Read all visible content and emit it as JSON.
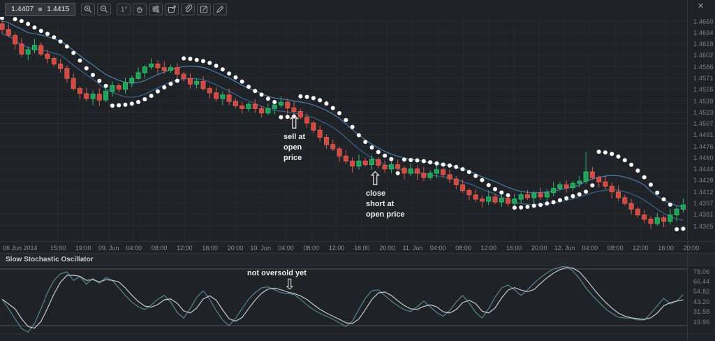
{
  "toolbar": {
    "bid": "1.4407",
    "ask": "1.4415",
    "buttons": [
      {
        "name": "zoom-in-button",
        "icon": "magnifier-plus-icon"
      },
      {
        "name": "zoom-out-button",
        "icon": "magnifier-minus-icon"
      },
      {
        "name": "reset-scale-button",
        "icon": "one-x-icon",
        "label": "1x"
      },
      {
        "name": "pan-button",
        "icon": "hand-icon"
      },
      {
        "name": "settings-button",
        "icon": "sliders-icon"
      },
      {
        "name": "export-button",
        "icon": "export-box-icon"
      },
      {
        "name": "attach-button",
        "icon": "paperclip-icon"
      },
      {
        "name": "notes-button",
        "icon": "edit-square-icon"
      },
      {
        "name": "draw-button",
        "icon": "pencil-icon"
      }
    ]
  },
  "annotations": {
    "sell": "sell at open price",
    "close_short": "close short at open price",
    "stoch": "not oversold yet"
  },
  "indicator_panel": {
    "title": "Slow Stochastic Oscillator",
    "close_label": "✕"
  },
  "axes": {
    "time_start_label": "06 Jun 2014",
    "time_labels": [
      "15:00",
      "19:00",
      "09. Jun",
      "04:00",
      "08:00",
      "12:00",
      "16:00",
      "20:00",
      "10. Jun",
      "04:00",
      "08:00",
      "12:00",
      "16:00",
      "20:00",
      "11. Jun",
      "04:00",
      "08:00",
      "12:00",
      "16:00",
      "20:00",
      "12. Jun",
      "04:00",
      "08:00",
      "12:00",
      "16:00",
      "20:00"
    ],
    "price_labels": [
      "1.4650",
      "1.4634",
      "1.4618",
      "1.4602",
      "1.4586",
      "1.4571",
      "1.4555",
      "1.4539",
      "1.4523",
      "1.4507",
      "1.4491",
      "1.4476",
      "1.4460",
      "1.4444",
      "1.4428",
      "1.4412",
      "1.4397",
      "1.4381",
      "1.4365"
    ],
    "stoch_labels": [
      "78.06",
      "66.44",
      "54.82",
      "43.20",
      "31.58",
      "19.96"
    ]
  },
  "colors": {
    "background": "#1f2226",
    "grid": "#282c31",
    "up": "#1f9e54",
    "up_stroke": "#2fbc70",
    "down": "#cf4a41",
    "down_stroke": "#dd5a50",
    "ma_high": "#4a7dab",
    "ma_low": "#3a648f",
    "sar": "#ffffff",
    "stoch_k": "#538599",
    "stoch_d": "#c7cacc",
    "threshold": "#50545a",
    "axis_text": "#7d828a"
  },
  "chart_data": [
    {
      "type": "candlestick",
      "interval": "1 hour",
      "date_range": [
        "06 Jun 2014",
        "12 Jun 2014 20:00"
      ],
      "price_range": [
        1.4365,
        1.465
      ],
      "bid": 1.4407,
      "ask": 1.4415,
      "overlays": [
        "parabolic-sar-white-dots",
        "high-low-ma-channel-blue"
      ],
      "candles_format": [
        "open",
        "high",
        "low",
        "close"
      ],
      "candles": [
        [
          1.4646,
          1.465,
          1.4632,
          1.4638
        ],
        [
          1.4638,
          1.4645,
          1.4627,
          1.463
        ],
        [
          1.463,
          1.4633,
          1.461,
          1.4618
        ],
        [
          1.4618,
          1.4626,
          1.46,
          1.4604
        ],
        [
          1.4604,
          1.4615,
          1.4595,
          1.461
        ],
        [
          1.461,
          1.4625,
          1.4605,
          1.4616
        ],
        [
          1.4616,
          1.462,
          1.4601,
          1.4604
        ],
        [
          1.4604,
          1.461,
          1.4591,
          1.4598
        ],
        [
          1.4598,
          1.4601,
          1.4586,
          1.459
        ],
        [
          1.459,
          1.4597,
          1.4578,
          1.4584
        ],
        [
          1.4584,
          1.4588,
          1.4564,
          1.457
        ],
        [
          1.457,
          1.4577,
          1.4553,
          1.4556
        ],
        [
          1.4556,
          1.4559,
          1.4541,
          1.4549
        ],
        [
          1.4549,
          1.4557,
          1.4538,
          1.4542
        ],
        [
          1.4542,
          1.4553,
          1.4533,
          1.4548
        ],
        [
          1.4548,
          1.4557,
          1.4532,
          1.454
        ],
        [
          1.454,
          1.4556,
          1.4537,
          1.4552
        ],
        [
          1.4552,
          1.4566,
          1.4545,
          1.456
        ],
        [
          1.456,
          1.4563,
          1.4551,
          1.4555
        ],
        [
          1.4555,
          1.4571,
          1.4549,
          1.4564
        ],
        [
          1.4564,
          1.4574,
          1.4558,
          1.457
        ],
        [
          1.457,
          1.4585,
          1.4567,
          1.4578
        ],
        [
          1.4578,
          1.4589,
          1.457,
          1.4586
        ],
        [
          1.4586,
          1.4598,
          1.4582,
          1.459
        ],
        [
          1.459,
          1.4595,
          1.4576,
          1.4585
        ],
        [
          1.4585,
          1.4594,
          1.4576,
          1.4581
        ],
        [
          1.4581,
          1.4589,
          1.4578,
          1.4585
        ],
        [
          1.4585,
          1.4591,
          1.4569,
          1.4576
        ],
        [
          1.4576,
          1.4579,
          1.4566,
          1.457
        ],
        [
          1.457,
          1.4577,
          1.4556,
          1.4562
        ],
        [
          1.4562,
          1.457,
          1.4556,
          1.4566
        ],
        [
          1.4566,
          1.4573,
          1.4553,
          1.4556
        ],
        [
          1.4556,
          1.4559,
          1.4542,
          1.455
        ],
        [
          1.455,
          1.4558,
          1.4538,
          1.4542
        ],
        [
          1.4542,
          1.4552,
          1.4533,
          1.4547
        ],
        [
          1.4547,
          1.4556,
          1.4533,
          1.4538
        ],
        [
          1.4538,
          1.4542,
          1.4529,
          1.4532
        ],
        [
          1.4532,
          1.4538,
          1.4521,
          1.4528
        ],
        [
          1.4528,
          1.4537,
          1.4524,
          1.4534
        ],
        [
          1.4534,
          1.4541,
          1.4522,
          1.4528
        ],
        [
          1.4528,
          1.4532,
          1.4516,
          1.4522
        ],
        [
          1.4522,
          1.4535,
          1.4519,
          1.4528
        ],
        [
          1.4528,
          1.4536,
          1.452,
          1.4533
        ],
        [
          1.4533,
          1.4545,
          1.4529,
          1.4537
        ],
        [
          1.4537,
          1.4542,
          1.452,
          1.4529
        ],
        [
          1.4529,
          1.4538,
          1.4519,
          1.4524
        ],
        [
          1.4524,
          1.4528,
          1.4513,
          1.4516
        ],
        [
          1.4516,
          1.4522,
          1.4501,
          1.4508
        ],
        [
          1.4508,
          1.4511,
          1.4494,
          1.4498
        ],
        [
          1.4498,
          1.4505,
          1.4482,
          1.4488
        ],
        [
          1.4488,
          1.4492,
          1.4472,
          1.4478
        ],
        [
          1.4478,
          1.4485,
          1.4469,
          1.4472
        ],
        [
          1.4472,
          1.4475,
          1.4454,
          1.4462
        ],
        [
          1.4462,
          1.447,
          1.4451,
          1.4455
        ],
        [
          1.4455,
          1.446,
          1.4439,
          1.4448
        ],
        [
          1.4448,
          1.4464,
          1.4443,
          1.4455
        ],
        [
          1.4455,
          1.4459,
          1.4447,
          1.445
        ],
        [
          1.445,
          1.4463,
          1.4443,
          1.4457
        ],
        [
          1.4457,
          1.446,
          1.4445,
          1.4449
        ],
        [
          1.4449,
          1.4456,
          1.4438,
          1.4444
        ],
        [
          1.4444,
          1.4454,
          1.4438,
          1.445
        ],
        [
          1.445,
          1.4457,
          1.4442,
          1.4445
        ],
        [
          1.4445,
          1.4448,
          1.443,
          1.4438
        ],
        [
          1.4438,
          1.4452,
          1.4434,
          1.4444
        ],
        [
          1.4444,
          1.4449,
          1.4429,
          1.4438
        ],
        [
          1.4438,
          1.4447,
          1.4427,
          1.4432
        ],
        [
          1.4432,
          1.4442,
          1.4429,
          1.4438
        ],
        [
          1.4438,
          1.4449,
          1.4431,
          1.4443
        ],
        [
          1.4443,
          1.4446,
          1.4432,
          1.4436
        ],
        [
          1.4436,
          1.4443,
          1.4424,
          1.443
        ],
        [
          1.443,
          1.4434,
          1.4416,
          1.4422
        ],
        [
          1.4422,
          1.4429,
          1.4411,
          1.4414
        ],
        [
          1.4414,
          1.4417,
          1.44,
          1.4408
        ],
        [
          1.4408,
          1.4416,
          1.4398,
          1.4402
        ],
        [
          1.4402,
          1.4407,
          1.439,
          1.4399
        ],
        [
          1.4399,
          1.4414,
          1.4394,
          1.4405
        ],
        [
          1.4405,
          1.4409,
          1.4395,
          1.4398
        ],
        [
          1.4398,
          1.4409,
          1.4391,
          1.4403
        ],
        [
          1.4403,
          1.4406,
          1.4392,
          1.4396
        ],
        [
          1.4396,
          1.4409,
          1.439,
          1.4402
        ],
        [
          1.4402,
          1.4412,
          1.4396,
          1.4408
        ],
        [
          1.4408,
          1.4415,
          1.4401,
          1.4404
        ],
        [
          1.4404,
          1.4413,
          1.4396,
          1.441
        ],
        [
          1.441,
          1.4418,
          1.4401,
          1.4405
        ],
        [
          1.4405,
          1.4416,
          1.4396,
          1.4411
        ],
        [
          1.4411,
          1.4426,
          1.4406,
          1.4417
        ],
        [
          1.4417,
          1.4426,
          1.4414,
          1.4422
        ],
        [
          1.4422,
          1.4428,
          1.4411,
          1.4418
        ],
        [
          1.4418,
          1.4427,
          1.4414,
          1.4424
        ],
        [
          1.4424,
          1.4434,
          1.4418,
          1.4427
        ],
        [
          1.4427,
          1.4468,
          1.4423,
          1.444
        ],
        [
          1.444,
          1.4447,
          1.4429,
          1.4432
        ],
        [
          1.4432,
          1.4435,
          1.4418,
          1.4426
        ],
        [
          1.4426,
          1.4434,
          1.4416,
          1.442
        ],
        [
          1.442,
          1.4425,
          1.4403,
          1.4412
        ],
        [
          1.4412,
          1.4421,
          1.4399,
          1.4404
        ],
        [
          1.4404,
          1.4408,
          1.4393,
          1.4396
        ],
        [
          1.4396,
          1.4402,
          1.4381,
          1.4388
        ],
        [
          1.4388,
          1.4391,
          1.4376,
          1.438
        ],
        [
          1.438,
          1.4387,
          1.4368,
          1.4374
        ],
        [
          1.4374,
          1.4378,
          1.436,
          1.4368
        ],
        [
          1.4368,
          1.4383,
          1.4365,
          1.4376
        ],
        [
          1.4376,
          1.4379,
          1.4363,
          1.4371
        ],
        [
          1.4371,
          1.4388,
          1.4367,
          1.438
        ],
        [
          1.438,
          1.4393,
          1.4371,
          1.4388
        ],
        [
          1.4388,
          1.4403,
          1.4383,
          1.4394
        ]
      ]
    },
    {
      "type": "line",
      "title": "Slow Stochastic Oscillator",
      "ylim": [
        0,
        100
      ],
      "thresholds": [
        20,
        80
      ],
      "y_tick_labels": [
        78.06,
        66.44,
        54.82,
        43.2,
        31.58,
        19.96
      ],
      "series": [
        {
          "name": "%K",
          "values": [
            48,
            38,
            27,
            17,
            13,
            22,
            38,
            55,
            68,
            75,
            77,
            68,
            72,
            64,
            70,
            65,
            71,
            68,
            60,
            52,
            45,
            40,
            37,
            42,
            48,
            52,
            45,
            34,
            28,
            38,
            50,
            57,
            48,
            36,
            26,
            20,
            28,
            38,
            48,
            55,
            60,
            61,
            58,
            55,
            54,
            53,
            48,
            42,
            37,
            33,
            30,
            27,
            23,
            19,
            25,
            37,
            49,
            57,
            58,
            52,
            46,
            41,
            37,
            35,
            40,
            46,
            40,
            34,
            30,
            36,
            45,
            52,
            44,
            34,
            28,
            38,
            50,
            60,
            63,
            58,
            52,
            58,
            65,
            71,
            76,
            80,
            82,
            83,
            78,
            70,
            60,
            52,
            45,
            38,
            33,
            29,
            28,
            28,
            26,
            26,
            33,
            41,
            49,
            43,
            46,
            53
          ]
        },
        {
          "name": "%D",
          "derived": "3-period SMA of %K"
        }
      ]
    }
  ]
}
